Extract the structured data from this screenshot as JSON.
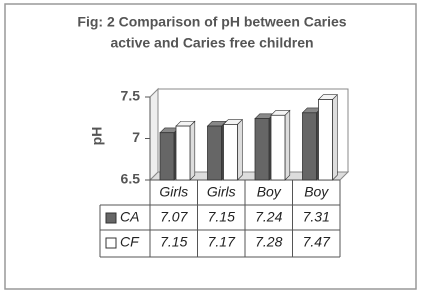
{
  "chart_data": {
    "type": "bar3d",
    "title": [
      "Fig: 2  Comparison of pH between Caries",
      "active and Caries free  children"
    ],
    "y_label": "pH",
    "categories": [
      "Girls",
      "Girls",
      "Boy",
      "Boy"
    ],
    "series": [
      {
        "name": "CA",
        "color": "#666666",
        "values": [
          7.07,
          7.15,
          7.24,
          7.31
        ]
      },
      {
        "name": "CF",
        "color": "#ffffff",
        "values": [
          7.15,
          7.17,
          7.28,
          7.47
        ]
      }
    ],
    "ylim": [
      6.5,
      7.5
    ],
    "yticks": [
      6.5,
      7,
      7.5
    ]
  }
}
